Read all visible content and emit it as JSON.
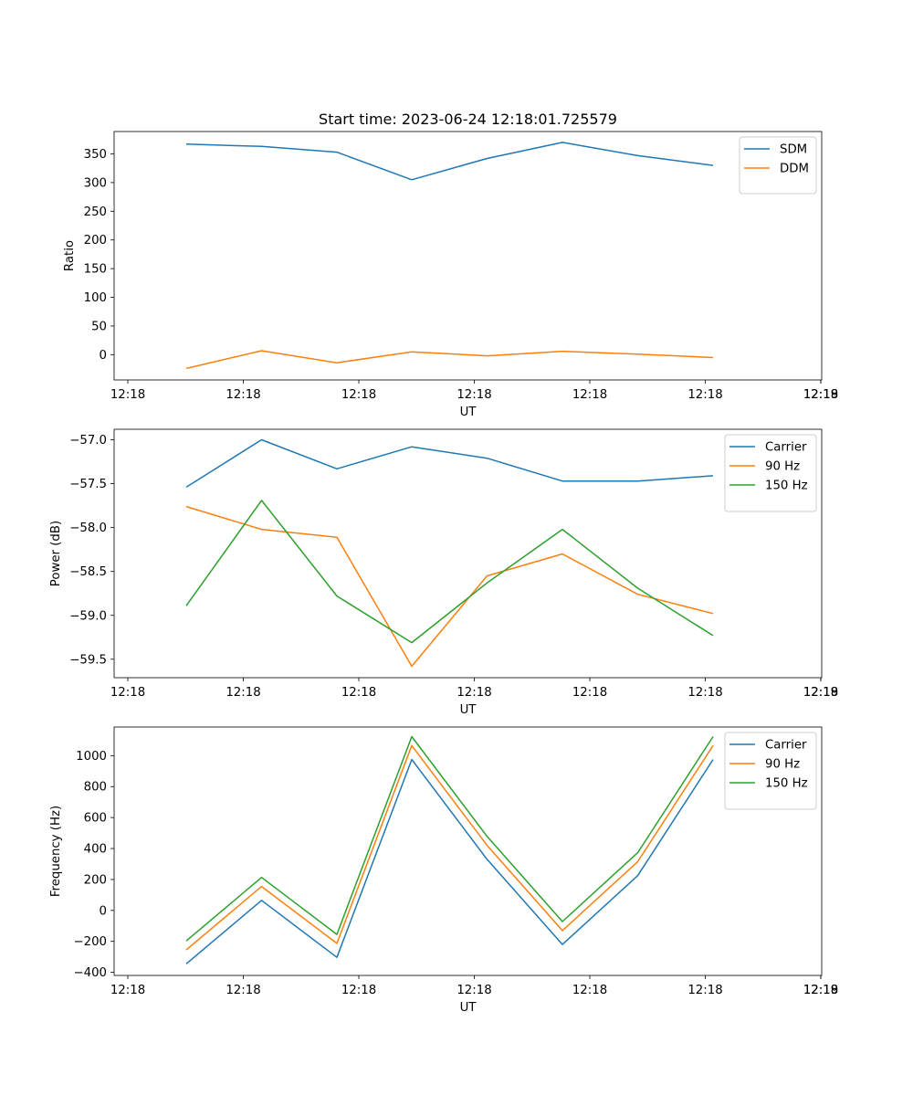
{
  "figure": {
    "title": "Start time: 2023-06-24 12:18:01.725579"
  },
  "colors": {
    "blue": "#1f77b4",
    "orange": "#ff7f0e",
    "green": "#2ca02c"
  },
  "chart_data": [
    {
      "type": "line",
      "title": "Start time: 2023-06-24 12:18:01.725579",
      "xlabel": "UT",
      "ylabel": "Ratio",
      "x_tick_labels": [
        "12:18",
        "12:18",
        "12:18",
        "12:18",
        "12:18",
        "12:18",
        "12:18",
        "12:19"
      ],
      "y_ticks": [
        0,
        50,
        100,
        150,
        200,
        250,
        300,
        350
      ],
      "ylim": [
        -44,
        389
      ],
      "legend_position": "top-right",
      "series": [
        {
          "name": "SDM",
          "color": "#1f77b4",
          "values": [
            367,
            363,
            353,
            305,
            342,
            370,
            347,
            330
          ]
        },
        {
          "name": "DDM",
          "color": "#ff7f0e",
          "values": [
            -24,
            7,
            -14,
            5,
            -2,
            6,
            1,
            -5
          ]
        }
      ]
    },
    {
      "type": "line",
      "title": "",
      "xlabel": "UT",
      "ylabel": "Power (dB)",
      "x_tick_labels": [
        "12:18",
        "12:18",
        "12:18",
        "12:18",
        "12:18",
        "12:18",
        "12:18",
        "12:19"
      ],
      "y_ticks": [
        -59.5,
        -59.0,
        -58.5,
        -58.0,
        -57.5,
        -57.0
      ],
      "y_tick_labels": [
        "−59.5",
        "−59.0",
        "−58.5",
        "−58.0",
        "−57.5",
        "−57.0"
      ],
      "ylim": [
        -59.71,
        -56.88
      ],
      "legend_position": "top-right",
      "series": [
        {
          "name": "Carrier",
          "color": "#1f77b4",
          "values": [
            -57.54,
            -57.0,
            -57.33,
            -57.08,
            -57.21,
            -57.47,
            -57.47,
            -57.41
          ]
        },
        {
          "name": "90 Hz",
          "color": "#ff7f0e",
          "values": [
            -57.76,
            -58.02,
            -58.11,
            -59.58,
            -58.55,
            -58.3,
            -58.76,
            -58.98
          ]
        },
        {
          "name": "150 Hz",
          "color": "#2ca02c",
          "values": [
            -58.89,
            -57.69,
            -58.78,
            -59.31,
            -58.63,
            -58.02,
            -58.69,
            -59.23
          ]
        }
      ]
    },
    {
      "type": "line",
      "title": "",
      "xlabel": "UT",
      "ylabel": "Frequency (Hz)",
      "x_tick_labels": [
        "12:18",
        "12:18",
        "12:18",
        "12:18",
        "12:18",
        "12:18",
        "12:18",
        "12:19"
      ],
      "y_ticks": [
        -400,
        -200,
        0,
        200,
        400,
        600,
        800,
        1000
      ],
      "y_tick_labels": [
        "−400",
        "−200",
        "0",
        "200",
        "400",
        "600",
        "800",
        "1000"
      ],
      "ylim": [
        -420,
        1185
      ],
      "legend_position": "top-right",
      "series": [
        {
          "name": "Carrier",
          "color": "#1f77b4",
          "values": [
            -345,
            65,
            -303,
            975,
            330,
            -220,
            225,
            975
          ]
        },
        {
          "name": "90 Hz",
          "color": "#ff7f0e",
          "values": [
            -255,
            155,
            -213,
            1065,
            420,
            -130,
            315,
            1065
          ]
        },
        {
          "name": "150 Hz",
          "color": "#2ca02c",
          "values": [
            -197,
            213,
            -155,
            1123,
            478,
            -72,
            373,
            1123
          ]
        }
      ]
    }
  ]
}
